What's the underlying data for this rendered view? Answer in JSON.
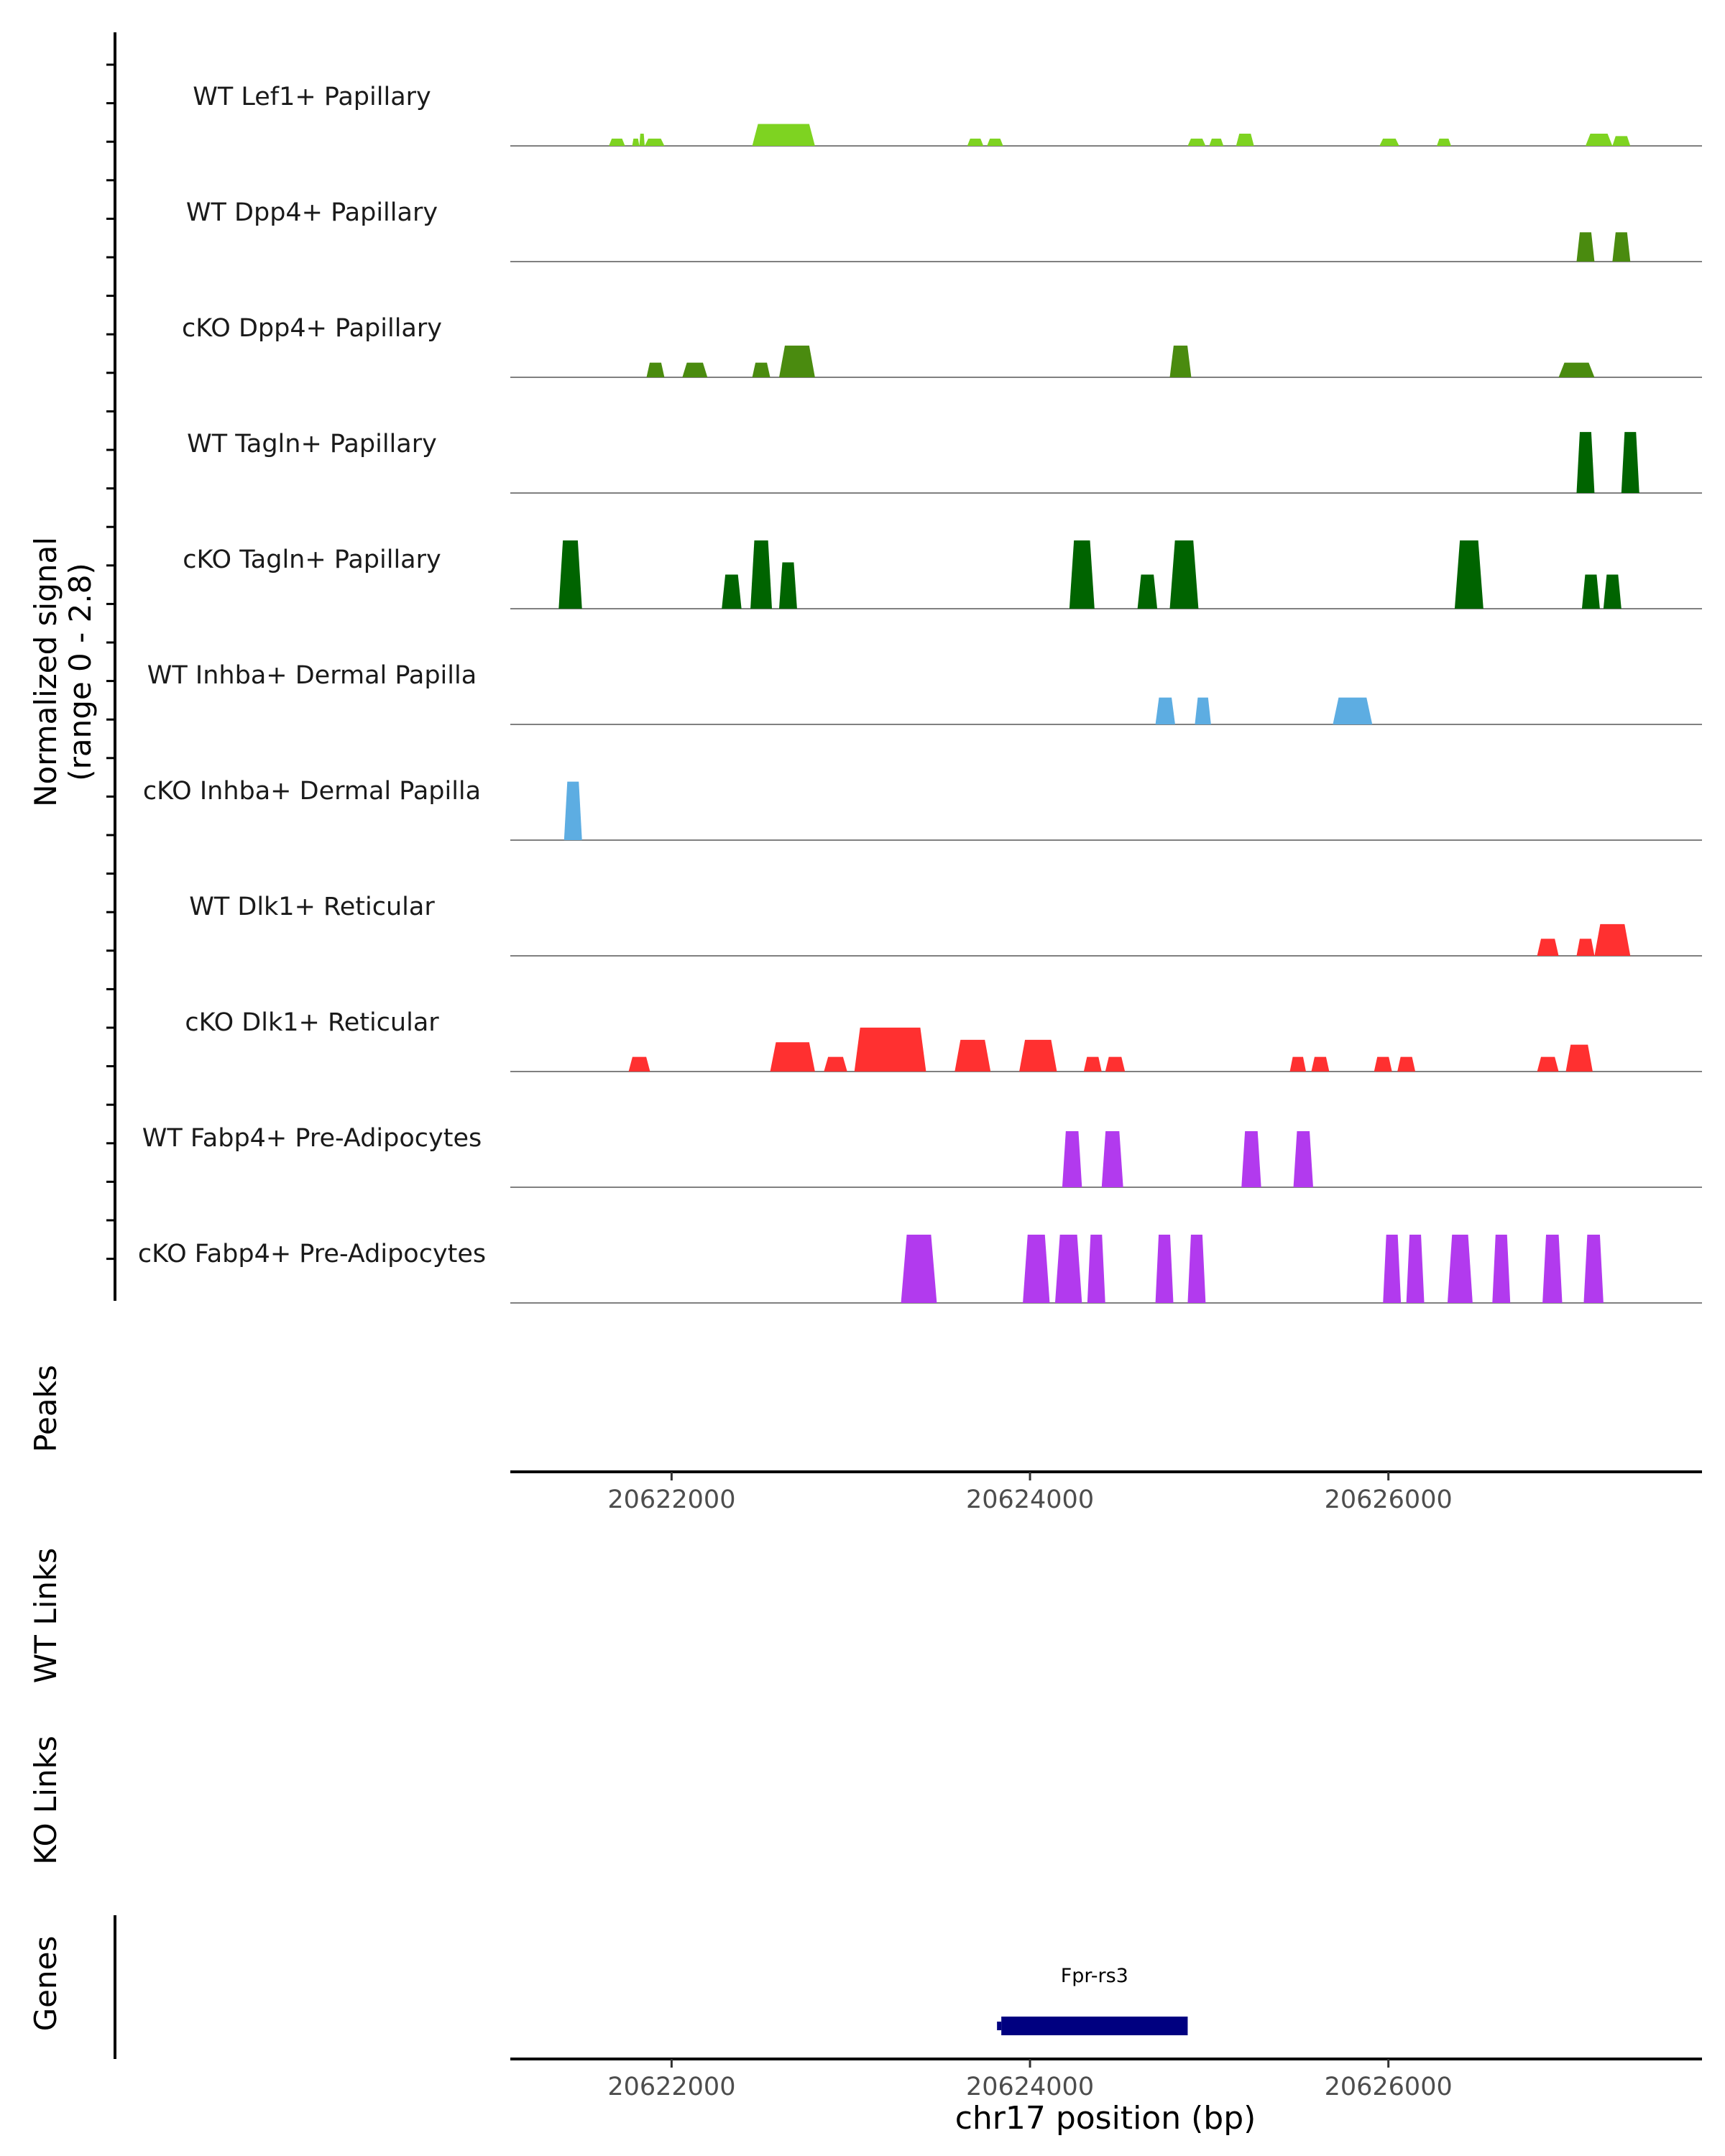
{
  "chart_data": {
    "type": "area",
    "title": "",
    "xlabel": "chr17 position (bp)",
    "ylabel_line1": "Normalized signal",
    "ylabel_line2": "(range 0 - 2.8)",
    "y_range": [
      0,
      2.8
    ],
    "xlim": [
      20621100,
      20627750
    ],
    "x_ticks": [
      20622000,
      20624000,
      20626000
    ],
    "x_tick_labels": [
      "20622000",
      "20624000",
      "20626000"
    ],
    "gene_x_ticks": [
      20622000,
      20624000,
      20626000
    ],
    "gene_x_tick_labels": [
      "20622000",
      "20624000",
      "20626000"
    ],
    "colors": {
      "lef1": "#7ED321",
      "dpp4": "#4A8B0F",
      "tagln": "#006400",
      "inhba": "#5DADE2",
      "dlk1": "#FF3030",
      "fabp4": "#B23AEE",
      "gene": "#000080",
      "baseline": "#808080"
    },
    "tracks": [
      {
        "name": "WT Lef1+ Papillary",
        "color": "lef1",
        "peaks": [
          [
            20621650,
            20621740,
            0.3
          ],
          [
            20621780,
            20621820,
            0.3
          ],
          [
            20621820,
            20621850,
            0.5
          ],
          [
            20621850,
            20621960,
            0.3
          ],
          [
            20622450,
            20622800,
            0.9
          ],
          [
            20623650,
            20623740,
            0.3
          ],
          [
            20623760,
            20623850,
            0.3
          ],
          [
            20624880,
            20624980,
            0.3
          ],
          [
            20625000,
            20625080,
            0.3
          ],
          [
            20625150,
            20625250,
            0.5
          ],
          [
            20625950,
            20626060,
            0.3
          ],
          [
            20626270,
            20626350,
            0.3
          ],
          [
            20627100,
            20627250,
            0.5
          ],
          [
            20627250,
            20627350,
            0.4
          ]
        ]
      },
      {
        "name": "WT Dpp4+ Papillary",
        "color": "dpp4",
        "peaks": [
          [
            20627050,
            20627150,
            1.2
          ],
          [
            20627250,
            20627350,
            1.2
          ]
        ]
      },
      {
        "name": "cKO Dpp4+ Papillary",
        "color": "dpp4",
        "peaks": [
          [
            20621860,
            20621960,
            0.6
          ],
          [
            20622060,
            20622200,
            0.6
          ],
          [
            20622450,
            20622550,
            0.6
          ],
          [
            20622600,
            20622800,
            1.3
          ],
          [
            20624780,
            20624900,
            1.3
          ],
          [
            20626950,
            20627150,
            0.6
          ]
        ]
      },
      {
        "name": "WT Tagln+ Papillary",
        "color": "tagln",
        "peaks": [
          [
            20627050,
            20627150,
            2.5
          ],
          [
            20627300,
            20627400,
            2.5
          ]
        ]
      },
      {
        "name": "cKO Tagln+ Papillary",
        "color": "tagln",
        "peaks": [
          [
            20621370,
            20621500,
            2.8
          ],
          [
            20622280,
            20622390,
            1.4
          ],
          [
            20622440,
            20622560,
            2.8
          ],
          [
            20622600,
            20622700,
            1.9
          ],
          [
            20624220,
            20624360,
            2.8
          ],
          [
            20624600,
            20624710,
            1.4
          ],
          [
            20624780,
            20624940,
            2.8
          ],
          [
            20626370,
            20626530,
            2.8
          ],
          [
            20627080,
            20627180,
            1.4
          ],
          [
            20627200,
            20627300,
            1.4
          ]
        ]
      },
      {
        "name": "WT Inhba+ Dermal Papilla",
        "color": "inhba",
        "peaks": [
          [
            20624700,
            20624810,
            1.1
          ],
          [
            20624920,
            20625010,
            1.1
          ],
          [
            20625690,
            20625910,
            1.1
          ]
        ]
      },
      {
        "name": "cKO Inhba+ Dermal Papilla",
        "color": "inhba",
        "peaks": [
          [
            20621400,
            20621500,
            2.4
          ]
        ]
      },
      {
        "name": "WT Dlk1+ Reticular",
        "color": "dlk1",
        "peaks": [
          [
            20626830,
            20626950,
            0.7
          ],
          [
            20627050,
            20627150,
            0.7
          ],
          [
            20627150,
            20627350,
            1.3
          ]
        ]
      },
      {
        "name": "cKO Dlk1+ Reticular",
        "color": "dlk1",
        "peaks": [
          [
            20621760,
            20621880,
            0.6
          ],
          [
            20622550,
            20622800,
            1.2
          ],
          [
            20622850,
            20622980,
            0.6
          ],
          [
            20623020,
            20623420,
            1.8
          ],
          [
            20623580,
            20623780,
            1.3
          ],
          [
            20623940,
            20624150,
            1.3
          ],
          [
            20624300,
            20624400,
            0.6
          ],
          [
            20624420,
            20624530,
            0.6
          ],
          [
            20625450,
            20625540,
            0.6
          ],
          [
            20625570,
            20625670,
            0.6
          ],
          [
            20625920,
            20626020,
            0.6
          ],
          [
            20626050,
            20626150,
            0.6
          ],
          [
            20626830,
            20626950,
            0.6
          ],
          [
            20626990,
            20627140,
            1.1
          ]
        ]
      },
      {
        "name": "WT Fabp4+ Pre-Adipocytes",
        "color": "fabp4",
        "peaks": [
          [
            20624180,
            20624290,
            2.3
          ],
          [
            20624400,
            20624520,
            2.3
          ],
          [
            20625180,
            20625290,
            2.3
          ],
          [
            20625470,
            20625580,
            2.3
          ]
        ]
      },
      {
        "name": "cKO Fabp4+ Pre-Adipocytes",
        "color": "fabp4",
        "peaks": [
          [
            20623280,
            20623480,
            2.8
          ],
          [
            20623960,
            20624110,
            2.8
          ],
          [
            20624140,
            20624290,
            2.8
          ],
          [
            20624320,
            20624420,
            2.8
          ],
          [
            20624700,
            20624800,
            2.8
          ],
          [
            20624880,
            20624980,
            2.8
          ],
          [
            20625970,
            20626070,
            2.8
          ],
          [
            20626100,
            20626200,
            2.8
          ],
          [
            20626330,
            20626470,
            2.8
          ],
          [
            20626580,
            20626680,
            2.8
          ],
          [
            20626860,
            20626970,
            2.8
          ],
          [
            20627090,
            20627200,
            2.8
          ]
        ]
      }
    ],
    "panels": {
      "peaks_label": "Peaks",
      "wt_links_label": "WT Links",
      "ko_links_label": "KO Links",
      "genes_label": "Genes"
    },
    "genes": [
      {
        "name": "Fpr-rs3",
        "start": 20623840,
        "end": 20624880
      }
    ]
  }
}
